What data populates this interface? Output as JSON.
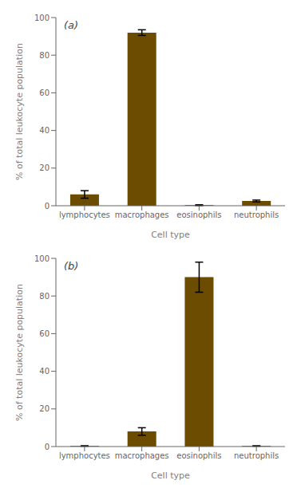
{
  "chart_data": [
    {
      "type": "bar",
      "annotations": [
        "(a)"
      ],
      "categories": [
        "lymphocytes",
        "macrophages",
        "eosinophils",
        "neutrophils"
      ],
      "values": [
        6.0,
        92.0,
        0.3,
        2.5
      ],
      "errors": [
        2.0,
        1.5,
        0.2,
        0.5
      ],
      "color": "#6B4C00",
      "ylim": [
        0,
        100
      ],
      "yticks": [
        0,
        20,
        40,
        60,
        80,
        100
      ],
      "ylabel": "% of total leukocyte population",
      "xlabel": "Cell type",
      "grid": false
    },
    {
      "type": "bar",
      "annotations": [
        "(b)"
      ],
      "categories": [
        "lymphocytes",
        "macrophages",
        "eosinophils",
        "neutrophils"
      ],
      "values": [
        0.3,
        8.0,
        90.0,
        0.3
      ],
      "errors": [
        0.1,
        2.0,
        8.0,
        0.1
      ],
      "color": "#6B4C00",
      "ylim": [
        0,
        100
      ],
      "yticks": [
        0,
        20,
        40,
        60,
        80,
        100
      ],
      "ylabel": "% of total leukocyte population",
      "xlabel": "Cell type",
      "grid": false
    }
  ]
}
